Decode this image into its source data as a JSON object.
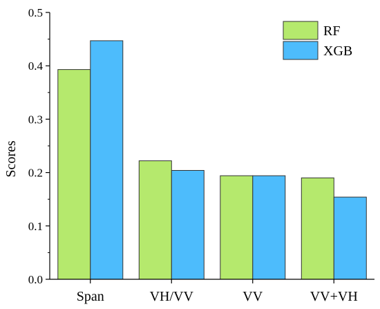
{
  "chart_data": {
    "type": "bar",
    "categories": [
      "Span",
      "VH/VV",
      "VV",
      "VV+VH"
    ],
    "series": [
      {
        "name": "RF",
        "values": [
          0.393,
          0.222,
          0.194,
          0.19
        ],
        "color": "#b5e96d"
      },
      {
        "name": "XGB",
        "values": [
          0.447,
          0.204,
          0.194,
          0.154
        ],
        "color": "#4dbcfc"
      }
    ],
    "xlabel": "",
    "ylabel": "Scores",
    "ylim": [
      0,
      0.5
    ],
    "yticks": [
      0,
      0.1,
      0.2,
      0.3,
      0.4,
      0.5
    ],
    "ytick_labels": [
      "0.0",
      "0.1",
      "0.2",
      "0.3",
      "0.4",
      "0.5"
    ],
    "grid": false,
    "legend_position": "top-right"
  }
}
